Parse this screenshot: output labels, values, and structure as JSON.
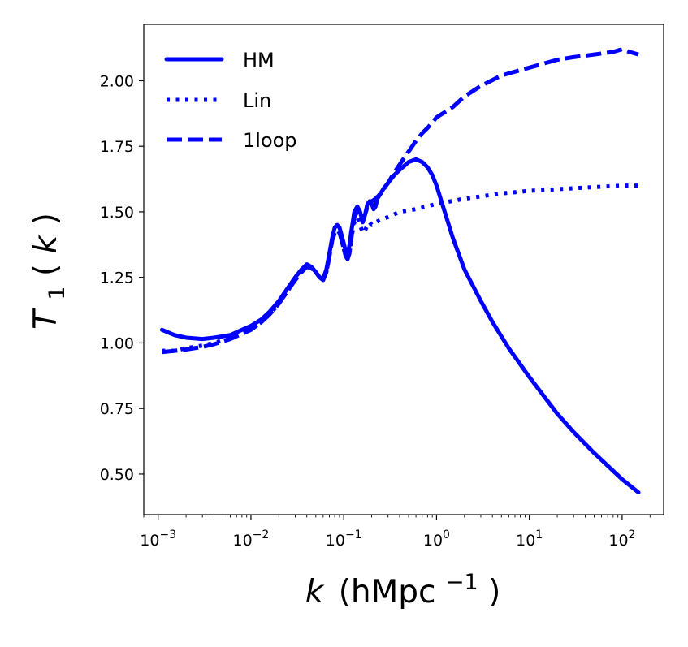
{
  "chart_data": {
    "type": "line",
    "xscale": "log",
    "xlim": [
      0.0007,
      280
    ],
    "ylim": [
      0.345,
      2.215
    ],
    "xlabel": {
      "var": "k",
      "unit_base": "(hMpc",
      "unit_exp": "−1",
      "unit_close": ")"
    },
    "ylabel": {
      "var": "T",
      "sub": "1",
      "arg_open": "(",
      "arg": "k",
      "arg_close": ")"
    },
    "color": "#0000ff",
    "legend_position": "top-left",
    "x_ticks": [
      {
        "value": 0.001,
        "base": "10",
        "exp": "−3"
      },
      {
        "value": 0.01,
        "base": "10",
        "exp": "−2"
      },
      {
        "value": 0.1,
        "base": "10",
        "exp": "−1"
      },
      {
        "value": 1,
        "base": "10",
        "exp": "0"
      },
      {
        "value": 10,
        "base": "10",
        "exp": "1"
      },
      {
        "value": 100,
        "base": "10",
        "exp": "2"
      }
    ],
    "y_ticks": [
      {
        "value": 0.5,
        "label": "0.50"
      },
      {
        "value": 0.75,
        "label": "0.75"
      },
      {
        "value": 1.0,
        "label": "1.00"
      },
      {
        "value": 1.25,
        "label": "1.25"
      },
      {
        "value": 1.5,
        "label": "1.50"
      },
      {
        "value": 1.75,
        "label": "1.75"
      },
      {
        "value": 2.0,
        "label": "2.00"
      }
    ],
    "series": [
      {
        "name": "HM",
        "style": "solid",
        "x": [
          0.0011,
          0.0015,
          0.002,
          0.003,
          0.004,
          0.006,
          0.008,
          0.01,
          0.013,
          0.016,
          0.02,
          0.025,
          0.03,
          0.035,
          0.04,
          0.045,
          0.05,
          0.055,
          0.06,
          0.065,
          0.07,
          0.075,
          0.08,
          0.085,
          0.09,
          0.095,
          0.1,
          0.105,
          0.11,
          0.115,
          0.12,
          0.125,
          0.13,
          0.14,
          0.15,
          0.16,
          0.17,
          0.18,
          0.19,
          0.2,
          0.21,
          0.22,
          0.23,
          0.24,
          0.25,
          0.27,
          0.3,
          0.35,
          0.4,
          0.5,
          0.6,
          0.7,
          0.8,
          0.9,
          1.0,
          1.2,
          1.5,
          2.0,
          3.0,
          4.0,
          6.0,
          10,
          20,
          30,
          50,
          100,
          150
        ],
        "y": [
          1.05,
          1.03,
          1.02,
          1.015,
          1.02,
          1.03,
          1.05,
          1.065,
          1.09,
          1.12,
          1.16,
          1.21,
          1.25,
          1.28,
          1.3,
          1.29,
          1.27,
          1.25,
          1.245,
          1.28,
          1.34,
          1.4,
          1.44,
          1.45,
          1.44,
          1.41,
          1.38,
          1.35,
          1.34,
          1.37,
          1.42,
          1.46,
          1.5,
          1.52,
          1.5,
          1.46,
          1.49,
          1.53,
          1.54,
          1.53,
          1.51,
          1.52,
          1.55,
          1.56,
          1.57,
          1.59,
          1.61,
          1.64,
          1.66,
          1.69,
          1.7,
          1.69,
          1.67,
          1.64,
          1.6,
          1.51,
          1.4,
          1.28,
          1.16,
          1.08,
          0.98,
          0.87,
          0.73,
          0.66,
          0.58,
          0.48,
          0.43
        ]
      },
      {
        "name": "Lin",
        "style": "dotted",
        "x": [
          0.0011,
          0.0015,
          0.002,
          0.003,
          0.004,
          0.006,
          0.008,
          0.01,
          0.013,
          0.016,
          0.02,
          0.025,
          0.03,
          0.035,
          0.04,
          0.045,
          0.05,
          0.055,
          0.06,
          0.065,
          0.07,
          0.075,
          0.08,
          0.085,
          0.09,
          0.095,
          0.1,
          0.105,
          0.11,
          0.115,
          0.12,
          0.125,
          0.13,
          0.14,
          0.15,
          0.16,
          0.17,
          0.18,
          0.19,
          0.2,
          0.22,
          0.25,
          0.3,
          0.4,
          0.6,
          1.0,
          2.0,
          5.0,
          10,
          30,
          100,
          150
        ],
        "y": [
          0.97,
          0.97,
          0.98,
          0.99,
          1.0,
          1.02,
          1.035,
          1.05,
          1.08,
          1.11,
          1.15,
          1.2,
          1.24,
          1.27,
          1.29,
          1.285,
          1.27,
          1.25,
          1.24,
          1.27,
          1.33,
          1.39,
          1.42,
          1.43,
          1.42,
          1.39,
          1.36,
          1.33,
          1.32,
          1.34,
          1.39,
          1.43,
          1.46,
          1.48,
          1.45,
          1.42,
          1.43,
          1.45,
          1.46,
          1.45,
          1.46,
          1.47,
          1.48,
          1.5,
          1.51,
          1.53,
          1.55,
          1.57,
          1.58,
          1.59,
          1.6,
          1.6
        ]
      },
      {
        "name": "1loop",
        "style": "dashed",
        "x": [
          0.0011,
          0.0015,
          0.002,
          0.003,
          0.004,
          0.006,
          0.008,
          0.01,
          0.013,
          0.016,
          0.02,
          0.025,
          0.03,
          0.035,
          0.04,
          0.045,
          0.05,
          0.055,
          0.06,
          0.065,
          0.07,
          0.075,
          0.08,
          0.085,
          0.09,
          0.095,
          0.1,
          0.105,
          0.11,
          0.115,
          0.12,
          0.125,
          0.13,
          0.14,
          0.15,
          0.16,
          0.17,
          0.18,
          0.19,
          0.2,
          0.22,
          0.25,
          0.3,
          0.35,
          0.4,
          0.5,
          0.6,
          0.7,
          0.8,
          1.0,
          1.5,
          2.0,
          3.0,
          5.0,
          10,
          20,
          30,
          50,
          80,
          100,
          120,
          150
        ],
        "y": [
          0.965,
          0.97,
          0.975,
          0.985,
          0.995,
          1.015,
          1.035,
          1.05,
          1.08,
          1.11,
          1.15,
          1.2,
          1.24,
          1.27,
          1.29,
          1.285,
          1.27,
          1.25,
          1.24,
          1.27,
          1.33,
          1.39,
          1.42,
          1.43,
          1.42,
          1.39,
          1.36,
          1.33,
          1.32,
          1.34,
          1.39,
          1.44,
          1.48,
          1.5,
          1.49,
          1.47,
          1.49,
          1.52,
          1.54,
          1.54,
          1.55,
          1.57,
          1.61,
          1.65,
          1.68,
          1.73,
          1.77,
          1.8,
          1.82,
          1.86,
          1.9,
          1.94,
          1.98,
          2.02,
          2.05,
          2.08,
          2.09,
          2.1,
          2.11,
          2.12,
          2.11,
          2.1
        ]
      }
    ]
  }
}
